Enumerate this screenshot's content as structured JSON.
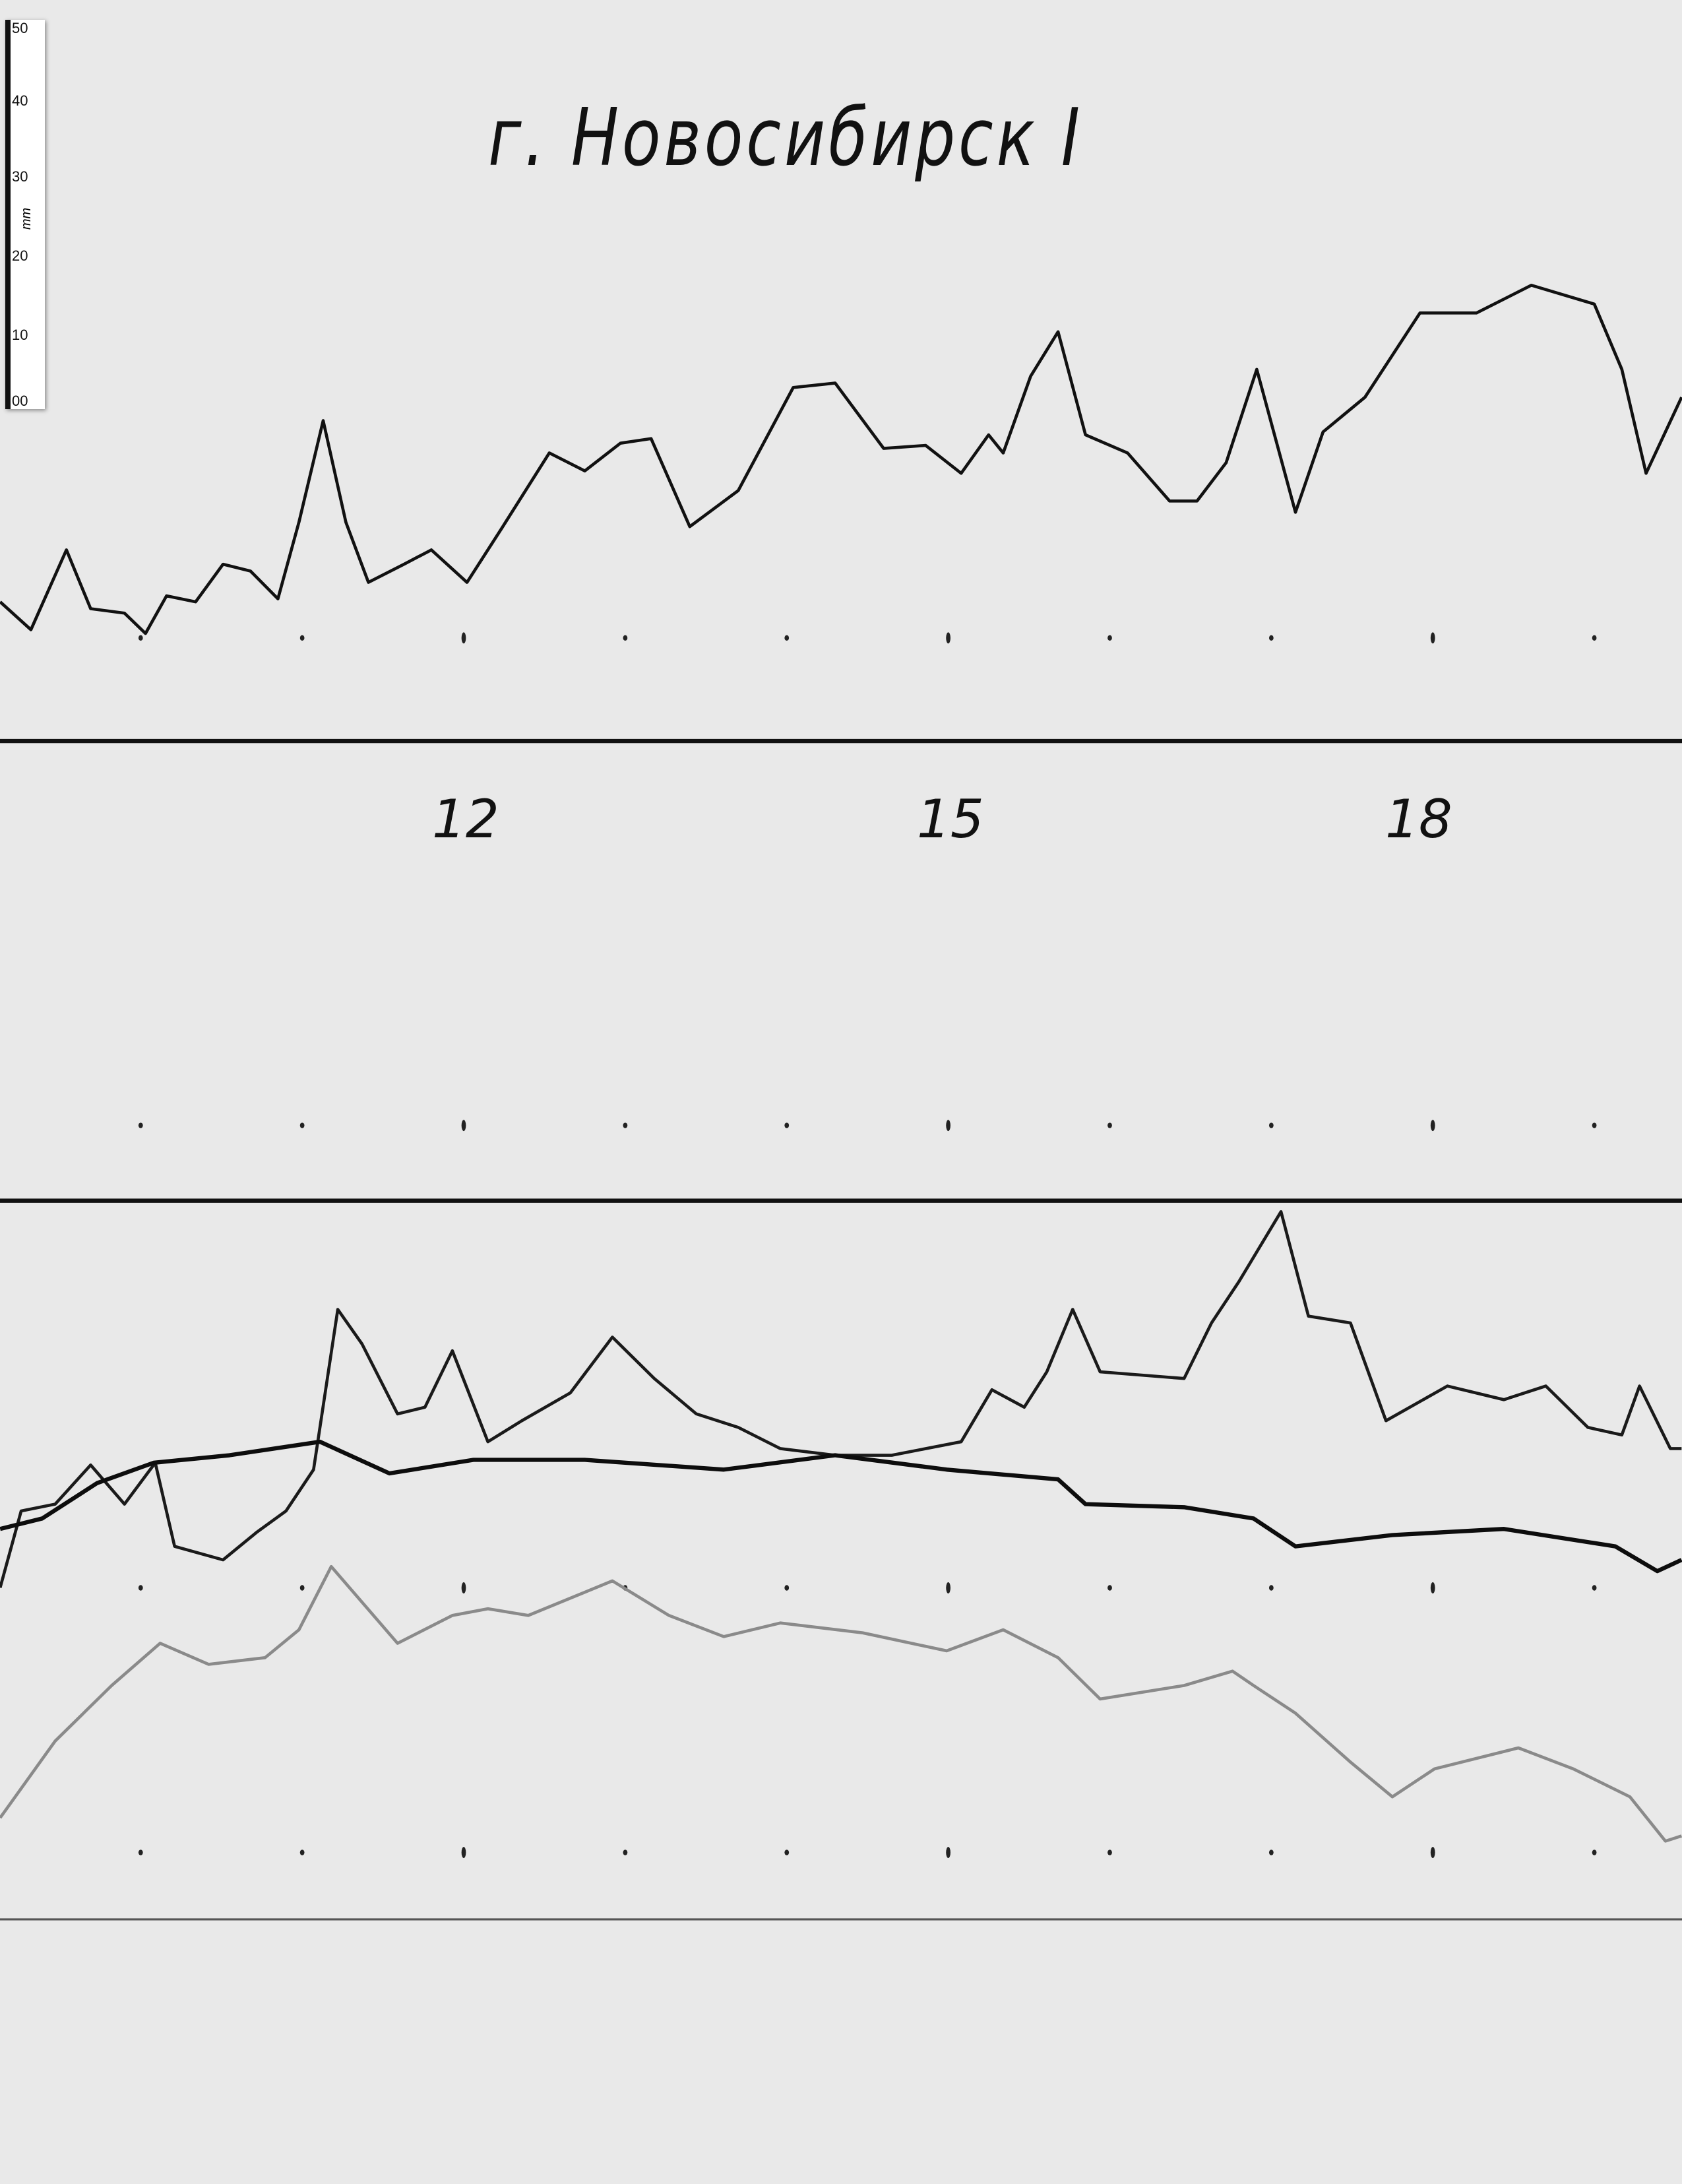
{
  "title": "г. Новосибирск I",
  "ruler": {
    "unit": "mm",
    "ticks": [
      "50",
      "40",
      "30",
      "20",
      "10",
      "00"
    ]
  },
  "chart_data": [
    {
      "type": "line",
      "title": "г. Новосибирск I",
      "xlabel": "",
      "ylabel": "",
      "x_unit": "hour",
      "y_unit": "mm",
      "xlim": [
        9.13,
        19.54
      ],
      "x_tick_labels": [
        "12",
        "15",
        "18"
      ],
      "x_ticks": [
        12,
        15,
        18
      ],
      "grid": false,
      "series": [
        {
          "color": "#111111",
          "points": [
            [
              9.13,
              18.5
            ],
            [
              9.32,
              14.8
            ],
            [
              9.54,
              25.4
            ],
            [
              9.69,
              17.6
            ],
            [
              9.9,
              17.0
            ],
            [
              10.03,
              14.3
            ],
            [
              10.16,
              19.3
            ],
            [
              10.34,
              18.5
            ],
            [
              10.51,
              23.5
            ],
            [
              10.68,
              22.6
            ],
            [
              10.85,
              18.9
            ],
            [
              10.98,
              29.1
            ],
            [
              11.13,
              42.6
            ],
            [
              11.27,
              29.1
            ],
            [
              11.41,
              21.1
            ],
            [
              11.63,
              23.5
            ],
            [
              11.8,
              25.4
            ],
            [
              12.02,
              21.1
            ],
            [
              12.23,
              28.1
            ],
            [
              12.53,
              38.3
            ],
            [
              12.75,
              35.9
            ],
            [
              12.97,
              39.6
            ],
            [
              13.16,
              40.2
            ],
            [
              13.4,
              28.5
            ],
            [
              13.7,
              33.3
            ],
            [
              14.04,
              47.0
            ],
            [
              14.3,
              47.6
            ],
            [
              14.6,
              38.9
            ],
            [
              14.86,
              39.3
            ],
            [
              15.08,
              35.6
            ],
            [
              15.25,
              40.7
            ],
            [
              15.34,
              38.3
            ],
            [
              15.51,
              48.5
            ],
            [
              15.68,
              54.4
            ],
            [
              15.85,
              40.7
            ],
            [
              16.11,
              38.3
            ],
            [
              16.37,
              31.9
            ],
            [
              16.54,
              31.9
            ],
            [
              16.72,
              37.0
            ],
            [
              16.91,
              49.4
            ],
            [
              17.15,
              30.4
            ],
            [
              17.32,
              41.1
            ],
            [
              17.58,
              45.7
            ],
            [
              17.92,
              56.9
            ],
            [
              18.27,
              56.9
            ],
            [
              18.61,
              60.6
            ],
            [
              19.0,
              58.1
            ],
            [
              19.17,
              49.4
            ],
            [
              19.32,
              35.6
            ],
            [
              19.54,
              45.7
            ]
          ]
        }
      ]
    },
    {
      "type": "line",
      "title": "",
      "xlabel": "",
      "ylabel": "",
      "x_unit": "hour",
      "y_unit": "mm",
      "xlim": [
        9.13,
        19.54
      ],
      "grid": false,
      "series": [
        {
          "color": "#1a1a1a",
          "points": [
            [
              9.13,
              44.1
            ],
            [
              9.26,
              54.3
            ],
            [
              9.47,
              55.2
            ],
            [
              9.69,
              60.4
            ],
            [
              9.9,
              55.2
            ],
            [
              10.09,
              60.7
            ],
            [
              10.21,
              49.6
            ],
            [
              10.51,
              47.8
            ],
            [
              10.72,
              51.5
            ],
            [
              10.9,
              54.3
            ],
            [
              11.07,
              59.8
            ],
            [
              11.22,
              81.1
            ],
            [
              11.37,
              76.5
            ],
            [
              11.59,
              67.2
            ],
            [
              11.76,
              68.1
            ],
            [
              11.93,
              75.6
            ],
            [
              12.15,
              63.5
            ],
            [
              12.36,
              66.3
            ],
            [
              12.66,
              70.0
            ],
            [
              12.92,
              77.4
            ],
            [
              13.18,
              71.9
            ],
            [
              13.44,
              67.2
            ],
            [
              13.7,
              65.4
            ],
            [
              13.96,
              62.6
            ],
            [
              14.3,
              61.7
            ],
            [
              14.65,
              61.7
            ],
            [
              15.08,
              63.5
            ],
            [
              15.27,
              70.4
            ],
            [
              15.47,
              68.1
            ],
            [
              15.61,
              72.8
            ],
            [
              15.77,
              81.1
            ],
            [
              15.94,
              72.8
            ],
            [
              16.46,
              71.9
            ],
            [
              16.63,
              79.3
            ],
            [
              16.8,
              84.8
            ],
            [
              17.06,
              94.1
            ],
            [
              17.23,
              80.2
            ],
            [
              17.49,
              79.3
            ],
            [
              17.71,
              66.3
            ],
            [
              18.09,
              70.9
            ],
            [
              18.44,
              69.1
            ],
            [
              18.7,
              70.9
            ],
            [
              18.96,
              65.4
            ],
            [
              19.17,
              64.4
            ],
            [
              19.28,
              70.9
            ],
            [
              19.47,
              62.6
            ],
            [
              19.54,
              62.6
            ]
          ]
        },
        {
          "color": "#0d0d0d",
          "points": [
            [
              9.13,
              51.9
            ],
            [
              9.39,
              53.3
            ],
            [
              9.73,
              58.0
            ],
            [
              10.08,
              60.7
            ],
            [
              10.55,
              61.7
            ],
            [
              11.11,
              63.5
            ],
            [
              11.54,
              59.3
            ],
            [
              12.06,
              61.1
            ],
            [
              12.75,
              61.1
            ],
            [
              13.61,
              59.8
            ],
            [
              14.3,
              61.7
            ],
            [
              14.99,
              59.8
            ],
            [
              15.68,
              58.5
            ],
            [
              15.85,
              55.2
            ],
            [
              16.46,
              54.8
            ],
            [
              16.89,
              53.3
            ],
            [
              17.15,
              49.6
            ],
            [
              17.75,
              51.1
            ],
            [
              18.44,
              51.9
            ],
            [
              19.13,
              49.6
            ],
            [
              19.39,
              46.3
            ],
            [
              19.54,
              47.8
            ]
          ]
        },
        {
          "color": "#8a8a8a",
          "points": [
            [
              9.13,
              13.5
            ],
            [
              9.47,
              23.7
            ],
            [
              9.82,
              31.1
            ],
            [
              10.12,
              36.7
            ],
            [
              10.42,
              33.9
            ],
            [
              10.77,
              34.8
            ],
            [
              10.98,
              38.5
            ],
            [
              11.18,
              46.9
            ],
            [
              11.59,
              36.7
            ],
            [
              11.93,
              40.4
            ],
            [
              12.15,
              41.3
            ],
            [
              12.4,
              40.4
            ],
            [
              12.92,
              45.0
            ],
            [
              13.27,
              40.4
            ],
            [
              13.61,
              37.6
            ],
            [
              13.96,
              39.4
            ],
            [
              14.47,
              38.1
            ],
            [
              14.99,
              35.7
            ],
            [
              15.34,
              38.5
            ],
            [
              15.68,
              34.8
            ],
            [
              15.94,
              29.3
            ],
            [
              16.46,
              31.1
            ],
            [
              16.76,
              33.0
            ],
            [
              16.89,
              31.1
            ],
            [
              17.15,
              27.4
            ],
            [
              17.49,
              20.9
            ],
            [
              17.75,
              16.3
            ],
            [
              18.01,
              20.0
            ],
            [
              18.53,
              22.8
            ],
            [
              18.87,
              20.0
            ],
            [
              19.22,
              16.3
            ],
            [
              19.44,
              10.4
            ],
            [
              19.54,
              11.1
            ]
          ]
        }
      ]
    }
  ]
}
